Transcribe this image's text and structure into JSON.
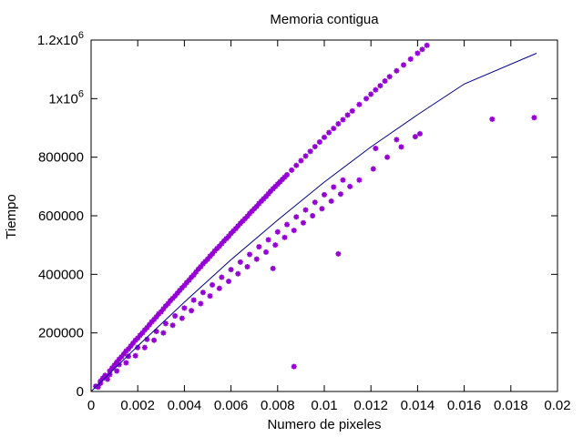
{
  "chart_data": {
    "type": "scatter",
    "title": "Memoria contigua",
    "xlabel": "Numero de pixeles",
    "ylabel": "Tiempo",
    "xlim": [
      0,
      0.02
    ],
    "ylim": [
      0,
      1200000
    ],
    "grid": false,
    "x_ticks": [
      {
        "value": 0,
        "label": "0"
      },
      {
        "value": 0.002,
        "label": "0.002"
      },
      {
        "value": 0.004,
        "label": "0.004"
      },
      {
        "value": 0.006,
        "label": "0.006"
      },
      {
        "value": 0.008,
        "label": "0.008"
      },
      {
        "value": 0.01,
        "label": "0.01"
      },
      {
        "value": 0.012,
        "label": "0.012"
      },
      {
        "value": 0.014,
        "label": "0.014"
      },
      {
        "value": 0.016,
        "label": "0.016"
      },
      {
        "value": 0.018,
        "label": "0.018"
      },
      {
        "value": 0.02,
        "label": "0.02"
      }
    ],
    "y_ticks": [
      {
        "value": 0,
        "label": "0"
      },
      {
        "value": 200000,
        "label": "200000"
      },
      {
        "value": 400000,
        "label": "400000"
      },
      {
        "value": 600000,
        "label": "600000"
      },
      {
        "value": 800000,
        "label": "800000"
      },
      {
        "value": 1000000,
        "label": "1x10",
        "sup": "6"
      },
      {
        "value": 1200000,
        "label": "1.2x10",
        "sup": "6"
      }
    ],
    "series": [
      {
        "kind": "points",
        "marker": "asterisk",
        "color": "#9400D3",
        "x": [
          0.0002,
          0.0004,
          0.0005,
          0.0006,
          0.0008,
          0.0009,
          0.001,
          0.0011,
          0.0012,
          0.0013,
          0.0014,
          0.0015,
          0.0016,
          0.0017,
          0.0018,
          0.0019,
          0.002,
          0.0021,
          0.0022,
          0.0023,
          0.0024,
          0.0025,
          0.0026,
          0.0027,
          0.0028,
          0.0029,
          0.003,
          0.0031,
          0.0032,
          0.0033,
          0.0034,
          0.0035,
          0.0036,
          0.0037,
          0.0038,
          0.0039,
          0.004,
          0.0041,
          0.0042,
          0.0043,
          0.0044,
          0.0045,
          0.0046,
          0.0047,
          0.0048,
          0.0049,
          0.005,
          0.0051,
          0.0052,
          0.0053,
          0.0054,
          0.0055,
          0.0056,
          0.0057,
          0.0058,
          0.0059,
          0.006,
          0.0061,
          0.0062,
          0.0063,
          0.0064,
          0.0065,
          0.0066,
          0.0067,
          0.0068,
          0.0069,
          0.007,
          0.0071,
          0.0072,
          0.0073,
          0.0074,
          0.0075,
          0.0076,
          0.0077,
          0.0078,
          0.0079,
          0.008,
          0.0081,
          0.0082,
          0.0083,
          0.0084,
          0.0086,
          0.0088,
          0.009,
          0.0092,
          0.0094,
          0.0096,
          0.0098,
          0.01,
          0.0102,
          0.0104,
          0.0106,
          0.0108,
          0.011,
          0.0112,
          0.0115,
          0.0118,
          0.012,
          0.0122,
          0.0124,
          0.0126,
          0.0128,
          0.0131,
          0.0134,
          0.0137,
          0.014,
          0.0142,
          0.0144,
          0.0004,
          0.0008,
          0.0012,
          0.0016,
          0.002,
          0.0024,
          0.0028,
          0.0032,
          0.0036,
          0.004,
          0.0044,
          0.0048,
          0.0052,
          0.0056,
          0.006,
          0.0064,
          0.0068,
          0.0072,
          0.0076,
          0.008,
          0.0084,
          0.0088,
          0.0092,
          0.0096,
          0.01,
          0.0104,
          0.0108,
          0.0003,
          0.0007,
          0.0011,
          0.0015,
          0.0019,
          0.0023,
          0.0027,
          0.0031,
          0.0035,
          0.0039,
          0.0043,
          0.0047,
          0.0051,
          0.0055,
          0.0059,
          0.0063,
          0.0067,
          0.0071,
          0.0075,
          0.0079,
          0.0083,
          0.0087,
          0.0091,
          0.0095,
          0.0099,
          0.0103,
          0.0107,
          0.0111,
          0.0115,
          0.0121,
          0.0127,
          0.0133,
          0.0139,
          0.0141,
          0.0122,
          0.0131,
          0.0078,
          0.0106,
          0.0087,
          0.0172,
          0.019
        ],
        "y": [
          18000,
          35000,
          45000,
          55000,
          70000,
          80000,
          90000,
          100000,
          110000,
          118000,
          128000,
          138000,
          145000,
          155000,
          165000,
          175000,
          182000,
          192000,
          200000,
          210000,
          218000,
          228000,
          238000,
          246000,
          255000,
          265000,
          272000,
          282000,
          292000,
          300000,
          310000,
          318000,
          326000,
          336000,
          345000,
          354000,
          362000,
          372000,
          380000,
          390000,
          398000,
          408000,
          418000,
          426000,
          436000,
          444000,
          452000,
          462000,
          470000,
          480000,
          488000,
          496000,
          505000,
          514000,
          522000,
          530000,
          540000,
          548000,
          556000,
          565000,
          574000,
          582000,
          590000,
          598000,
          608000,
          616000,
          624000,
          632000,
          642000,
          650000,
          658000,
          666000,
          675000,
          684000,
          692000,
          700000,
          708000,
          716000,
          724000,
          732000,
          740000,
          756000,
          772000,
          788000,
          804000,
          820000,
          836000,
          852000,
          868000,
          884000,
          898000,
          914000,
          928000,
          944000,
          958000,
          980000,
          1000000,
          1015000,
          1030000,
          1044000,
          1060000,
          1075000,
          1095000,
          1115000,
          1135000,
          1155000,
          1168000,
          1182000,
          28000,
          58000,
          92000,
          120000,
          150000,
          178000,
          205000,
          232000,
          258000,
          285000,
          312000,
          338000,
          364000,
          390000,
          416000,
          442000,
          468000,
          494000,
          518000,
          545000,
          570000,
          596000,
          620000,
          646000,
          672000,
          698000,
          722000,
          15000,
          42000,
          70000,
          98000,
          122000,
          150000,
          175000,
          200000,
          226000,
          250000,
          276000,
          300000,
          326000,
          352000,
          376000,
          402000,
          426000,
          452000,
          476000,
          500000,
          526000,
          550000,
          576000,
          600000,
          624000,
          650000,
          674000,
          700000,
          722000,
          760000,
          800000,
          835000,
          870000,
          880000,
          830000,
          860000,
          420000,
          470000,
          85000,
          930000,
          935000
        ]
      },
      {
        "kind": "line",
        "color": "#00008B",
        "x": [
          0,
          0.002,
          0.004,
          0.006,
          0.008,
          0.01,
          0.012,
          0.014,
          0.016,
          0.0191
        ],
        "y": [
          0,
          155000,
          305000,
          450000,
          585000,
          715000,
          835000,
          945000,
          1050000,
          1155000
        ]
      }
    ]
  }
}
